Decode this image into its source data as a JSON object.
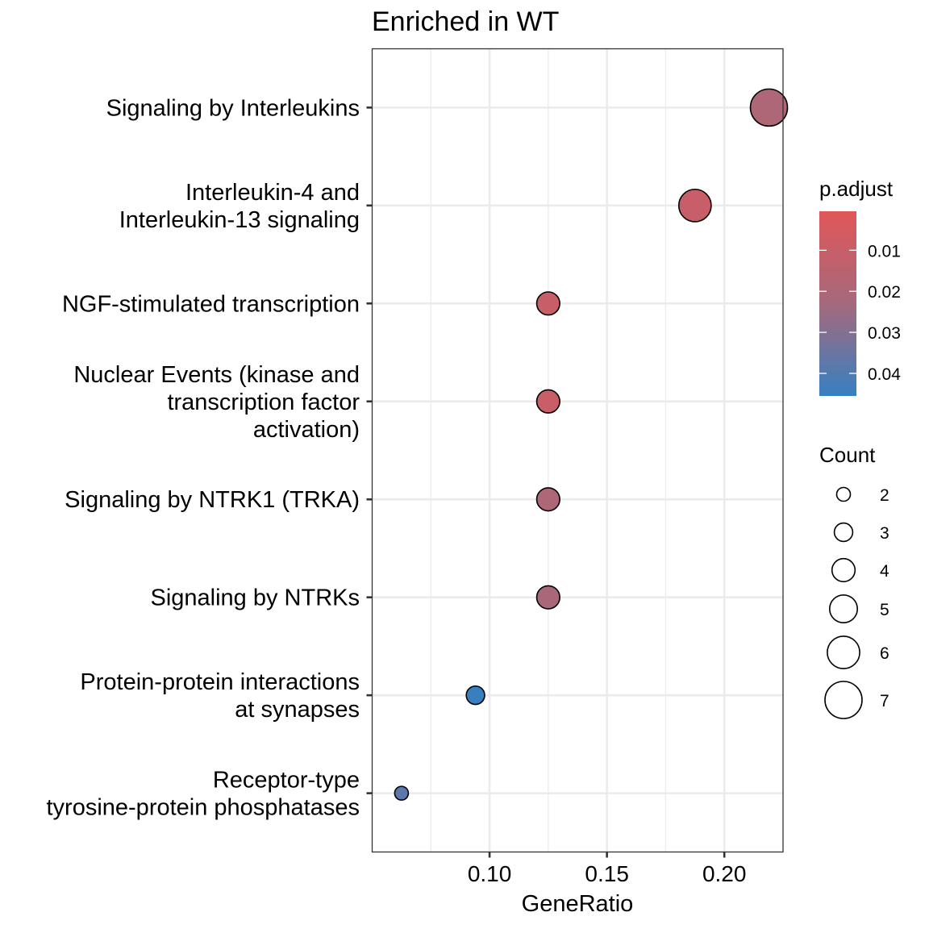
{
  "chart_data": {
    "type": "scatter",
    "title": "Enriched in WT",
    "xlabel": "GeneRatio",
    "ylabel": "",
    "xlim": [
      0.05,
      0.225
    ],
    "xticks": [
      0.1,
      0.15,
      0.2
    ],
    "xtick_labels": [
      "0.10",
      "0.15",
      "0.20"
    ],
    "grid": true,
    "categories": [
      [
        "Signaling by Interleukins"
      ],
      [
        "Interleukin-4 and",
        "Interleukin-13 signaling"
      ],
      [
        "NGF-stimulated transcription"
      ],
      [
        "Nuclear Events (kinase and",
        "transcription factor",
        "activation)"
      ],
      [
        "Signaling by NTRK1 (TRKA)"
      ],
      [
        "Signaling by NTRKs"
      ],
      [
        "Protein-protein interactions",
        "at synapses"
      ],
      [
        "Receptor-type",
        "tyrosine-protein phosphatases"
      ]
    ],
    "points": [
      {
        "gene_ratio": 0.219,
        "count": 7,
        "p_adjust": 0.02
      },
      {
        "gene_ratio": 0.1875,
        "count": 6,
        "p_adjust": 0.01
      },
      {
        "gene_ratio": 0.125,
        "count": 4,
        "p_adjust": 0.01
      },
      {
        "gene_ratio": 0.125,
        "count": 4,
        "p_adjust": 0.01
      },
      {
        "gene_ratio": 0.125,
        "count": 4,
        "p_adjust": 0.02
      },
      {
        "gene_ratio": 0.125,
        "count": 4,
        "p_adjust": 0.022
      },
      {
        "gene_ratio": 0.094,
        "count": 3,
        "p_adjust": 0.045
      },
      {
        "gene_ratio": 0.0625,
        "count": 2,
        "p_adjust": 0.038
      }
    ],
    "color_legend": {
      "title": "p.adjust",
      "range": [
        0.0005,
        0.0455
      ],
      "ticks": [
        0.01,
        0.02,
        0.03,
        0.04
      ],
      "tick_labels": [
        "0.01",
        "0.02",
        "0.03",
        "0.04"
      ],
      "low_color": "#e15759",
      "high_color": "#3780c1",
      "placement": "right"
    },
    "size_legend": {
      "title": "Count",
      "values": [
        2,
        3,
        4,
        5,
        6,
        7
      ],
      "labels": [
        "2",
        "3",
        "4",
        "5",
        "6",
        "7"
      ],
      "placement": "right"
    }
  }
}
